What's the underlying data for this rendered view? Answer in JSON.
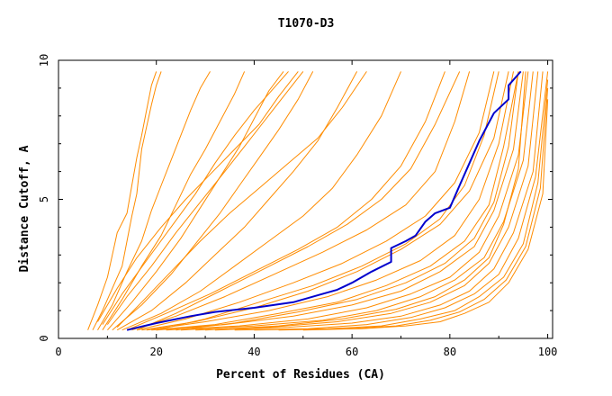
{
  "chart_data": {
    "type": "line",
    "title": "T1070-D3",
    "xlabel": "Percent of Residues (CA)",
    "ylabel": "Distance Cutoff, A",
    "xlim": [
      0,
      101
    ],
    "ylim": [
      0,
      10
    ],
    "x_ticks": [
      0,
      20,
      40,
      60,
      80,
      100
    ],
    "y_ticks": [
      0,
      5,
      10
    ],
    "grid": false,
    "colors": {
      "background_models": "#ff8c00",
      "highlight_model": "#0000cd",
      "axes": "#000000"
    },
    "series": [
      {
        "name": "",
        "highlight": true,
        "x": [
          14,
          20,
          27,
          32,
          40,
          48,
          53,
          57,
          60,
          64,
          68,
          68,
          71,
          73,
          75,
          77,
          80,
          82,
          84,
          86,
          89,
          92,
          92,
          94.5
        ],
        "y": [
          0.3,
          0.55,
          0.8,
          0.95,
          1.1,
          1.3,
          1.55,
          1.75,
          2.0,
          2.4,
          2.75,
          3.25,
          3.5,
          3.7,
          4.2,
          4.5,
          4.7,
          5.5,
          6.3,
          7.1,
          8.1,
          8.6,
          9.1,
          9.6
        ]
      },
      {
        "name": "",
        "x": [
          6,
          8,
          10,
          11,
          12,
          14,
          15,
          16,
          17,
          18,
          19,
          20
        ],
        "y": [
          0.3,
          1.2,
          2.2,
          3.0,
          3.8,
          4.5,
          5.5,
          6.5,
          7.3,
          8.2,
          9.1,
          9.6
        ]
      },
      {
        "name": "",
        "x": [
          7,
          9,
          11,
          13,
          14,
          15,
          16,
          16.5,
          17,
          18,
          19,
          20,
          21
        ],
        "y": [
          0.3,
          1.0,
          1.8,
          2.6,
          3.5,
          4.4,
          5.2,
          6.0,
          6.8,
          7.6,
          8.4,
          9.1,
          9.6
        ]
      },
      {
        "name": "",
        "x": [
          8,
          11,
          14,
          17,
          19,
          21,
          23,
          25,
          27,
          29,
          31
        ],
        "y": [
          0.3,
          1.2,
          2.4,
          3.5,
          4.6,
          5.5,
          6.4,
          7.3,
          8.2,
          9.0,
          9.6
        ]
      },
      {
        "name": "",
        "x": [
          9,
          13,
          17,
          21,
          24,
          27,
          30,
          33,
          36,
          38
        ],
        "y": [
          0.3,
          1.4,
          2.6,
          3.7,
          4.8,
          5.9,
          6.8,
          7.8,
          8.8,
          9.6
        ]
      },
      {
        "name": "",
        "x": [
          10,
          15,
          20,
          25,
          29,
          33,
          37,
          40,
          43,
          46
        ],
        "y": [
          0.3,
          1.3,
          2.4,
          3.6,
          4.7,
          5.8,
          6.9,
          7.9,
          8.9,
          9.6
        ]
      },
      {
        "name": "",
        "x": [
          11,
          17,
          23,
          28,
          33,
          37,
          41,
          45,
          49,
          52
        ],
        "y": [
          0.3,
          1.2,
          2.3,
          3.4,
          4.5,
          5.5,
          6.5,
          7.5,
          8.6,
          9.6
        ]
      },
      {
        "name": "",
        "x": [
          12,
          19,
          26,
          32,
          38,
          43,
          48,
          53,
          57,
          61
        ],
        "y": [
          0.3,
          1.0,
          2.0,
          3.0,
          4.0,
          5.0,
          6.0,
          7.1,
          8.3,
          9.6
        ]
      },
      {
        "name": "",
        "x": [
          13,
          21,
          29,
          36,
          43,
          50,
          56,
          61,
          66,
          70
        ],
        "y": [
          0.3,
          0.9,
          1.7,
          2.6,
          3.5,
          4.4,
          5.4,
          6.6,
          8.0,
          9.6
        ]
      },
      {
        "name": "",
        "x": [
          14,
          22,
          31,
          40,
          49,
          57,
          64,
          70,
          75,
          79
        ],
        "y": [
          0.3,
          0.9,
          1.6,
          2.4,
          3.2,
          4.0,
          5.0,
          6.2,
          7.8,
          9.6
        ]
      },
      {
        "name": "",
        "x": [
          15,
          24,
          34,
          44,
          54,
          63,
          71,
          77,
          81,
          84
        ],
        "y": [
          0.3,
          0.8,
          1.5,
          2.3,
          3.1,
          3.9,
          4.8,
          6.0,
          7.8,
          9.6
        ]
      },
      {
        "name": "",
        "x": [
          16,
          26,
          37,
          48,
          58,
          67,
          75,
          81,
          86,
          89
        ],
        "y": [
          0.3,
          0.7,
          1.3,
          2.0,
          2.7,
          3.5,
          4.4,
          5.6,
          7.4,
          9.6
        ]
      },
      {
        "name": "",
        "x": [
          17,
          28,
          40,
          51,
          61,
          70,
          78,
          84,
          89,
          92
        ],
        "y": [
          0.3,
          0.6,
          1.1,
          1.7,
          2.4,
          3.2,
          4.1,
          5.3,
          7.2,
          9.6
        ]
      },
      {
        "name": "",
        "x": [
          18,
          30,
          43,
          55,
          65,
          74,
          81,
          86,
          90,
          93
        ],
        "y": [
          0.3,
          0.6,
          1.0,
          1.5,
          2.1,
          2.8,
          3.7,
          5.0,
          7.0,
          9.6
        ]
      },
      {
        "name": "",
        "x": [
          19,
          32,
          45,
          57,
          67,
          76,
          83,
          88,
          91,
          94
        ],
        "y": [
          0.3,
          0.5,
          0.9,
          1.3,
          1.9,
          2.6,
          3.5,
          4.8,
          6.9,
          9.6
        ]
      },
      {
        "name": "",
        "x": [
          20,
          34,
          48,
          60,
          70,
          78,
          85,
          89,
          93,
          95
        ],
        "y": [
          0.3,
          0.5,
          0.8,
          1.2,
          1.7,
          2.4,
          3.3,
          4.6,
          6.8,
          9.6
        ]
      },
      {
        "name": "",
        "x": [
          22,
          37,
          51,
          63,
          72,
          80,
          86,
          90,
          94,
          96
        ],
        "y": [
          0.3,
          0.45,
          0.7,
          1.1,
          1.6,
          2.2,
          3.1,
          4.4,
          6.6,
          9.6
        ]
      },
      {
        "name": "",
        "x": [
          25,
          40,
          54,
          65,
          74,
          81,
          87,
          91,
          95,
          97
        ],
        "y": [
          0.3,
          0.45,
          0.65,
          1.0,
          1.5,
          2.1,
          2.9,
          4.2,
          6.4,
          9.6
        ]
      },
      {
        "name": "",
        "x": [
          28,
          43,
          57,
          68,
          76,
          83,
          88,
          92,
          96,
          98
        ],
        "y": [
          0.3,
          0.4,
          0.6,
          0.9,
          1.3,
          1.9,
          2.7,
          4.0,
          6.2,
          9.6
        ]
      },
      {
        "name": "",
        "x": [
          32,
          47,
          60,
          70,
          78,
          84,
          89,
          93,
          97,
          99
        ],
        "y": [
          0.3,
          0.4,
          0.55,
          0.8,
          1.2,
          1.7,
          2.5,
          3.8,
          6.0,
          9.6
        ]
      },
      {
        "name": "",
        "x": [
          36,
          51,
          63,
          72,
          79,
          85,
          90,
          94,
          97.5,
          100
        ],
        "y": [
          0.3,
          0.35,
          0.5,
          0.75,
          1.1,
          1.6,
          2.3,
          3.6,
          5.8,
          9.6
        ]
      },
      {
        "name": "",
        "x": [
          40,
          55,
          66,
          74,
          81,
          86,
          91,
          95,
          98,
          100
        ],
        "y": [
          0.3,
          0.35,
          0.45,
          0.7,
          1.0,
          1.5,
          2.2,
          3.4,
          5.6,
          9.3
        ]
      },
      {
        "name": "",
        "x": [
          45,
          59,
          69,
          76,
          82,
          87,
          91.5,
          95.5,
          98.5,
          100
        ],
        "y": [
          0.3,
          0.35,
          0.45,
          0.65,
          0.95,
          1.4,
          2.1,
          3.3,
          5.4,
          9.0
        ]
      },
      {
        "name": "",
        "x": [
          50,
          62,
          71,
          78,
          83,
          88,
          92,
          96,
          99,
          100
        ],
        "y": [
          0.3,
          0.35,
          0.45,
          0.6,
          0.9,
          1.3,
          2.0,
          3.2,
          5.2,
          8.6
        ]
      },
      {
        "name": "",
        "x": [
          10,
          14,
          19,
          24,
          29,
          34,
          38,
          42,
          46,
          50
        ],
        "y": [
          0.5,
          1.5,
          2.6,
          3.8,
          4.9,
          6.0,
          6.9,
          7.8,
          8.7,
          9.6
        ]
      },
      {
        "name": "",
        "x": [
          12,
          17,
          23,
          29,
          35,
          41,
          47,
          53,
          58,
          63
        ],
        "y": [
          0.4,
          1.3,
          2.4,
          3.5,
          4.5,
          5.4,
          6.3,
          7.2,
          8.3,
          9.6
        ]
      },
      {
        "name": "",
        "x": [
          16,
          24,
          33,
          42,
          51,
          59,
          66,
          72,
          77,
          82
        ],
        "y": [
          0.3,
          0.9,
          1.7,
          2.5,
          3.3,
          4.1,
          5.0,
          6.1,
          7.7,
          9.6
        ]
      },
      {
        "name": "",
        "x": [
          20,
          30,
          41,
          52,
          62,
          71,
          78,
          83,
          87,
          90
        ],
        "y": [
          0.3,
          0.7,
          1.3,
          1.9,
          2.6,
          3.4,
          4.3,
          5.5,
          7.3,
          9.6
        ]
      },
      {
        "name": "",
        "x": [
          24,
          36,
          49,
          61,
          71,
          79,
          85,
          89,
          92,
          94
        ],
        "y": [
          0.3,
          0.55,
          0.95,
          1.4,
          2.0,
          2.7,
          3.6,
          4.9,
          6.9,
          9.6
        ]
      },
      {
        "name": "",
        "x": [
          30,
          45,
          58,
          69,
          77,
          83,
          88,
          91,
          94,
          95.5
        ],
        "y": [
          0.3,
          0.45,
          0.7,
          1.05,
          1.5,
          2.1,
          2.9,
          4.1,
          6.1,
          9.6
        ]
      },
      {
        "name": "",
        "x": [
          8,
          12,
          16,
          21,
          26,
          31,
          36,
          41,
          45,
          49
        ],
        "y": [
          0.6,
          1.8,
          2.9,
          4.0,
          5.0,
          5.9,
          6.8,
          7.7,
          8.7,
          9.6
        ]
      },
      {
        "name": "",
        "x": [
          9,
          13,
          18,
          23,
          28,
          32,
          36,
          40,
          44,
          47
        ],
        "y": [
          0.5,
          1.6,
          2.8,
          4.0,
          5.2,
          6.3,
          7.3,
          8.2,
          9.0,
          9.6
        ]
      }
    ]
  }
}
